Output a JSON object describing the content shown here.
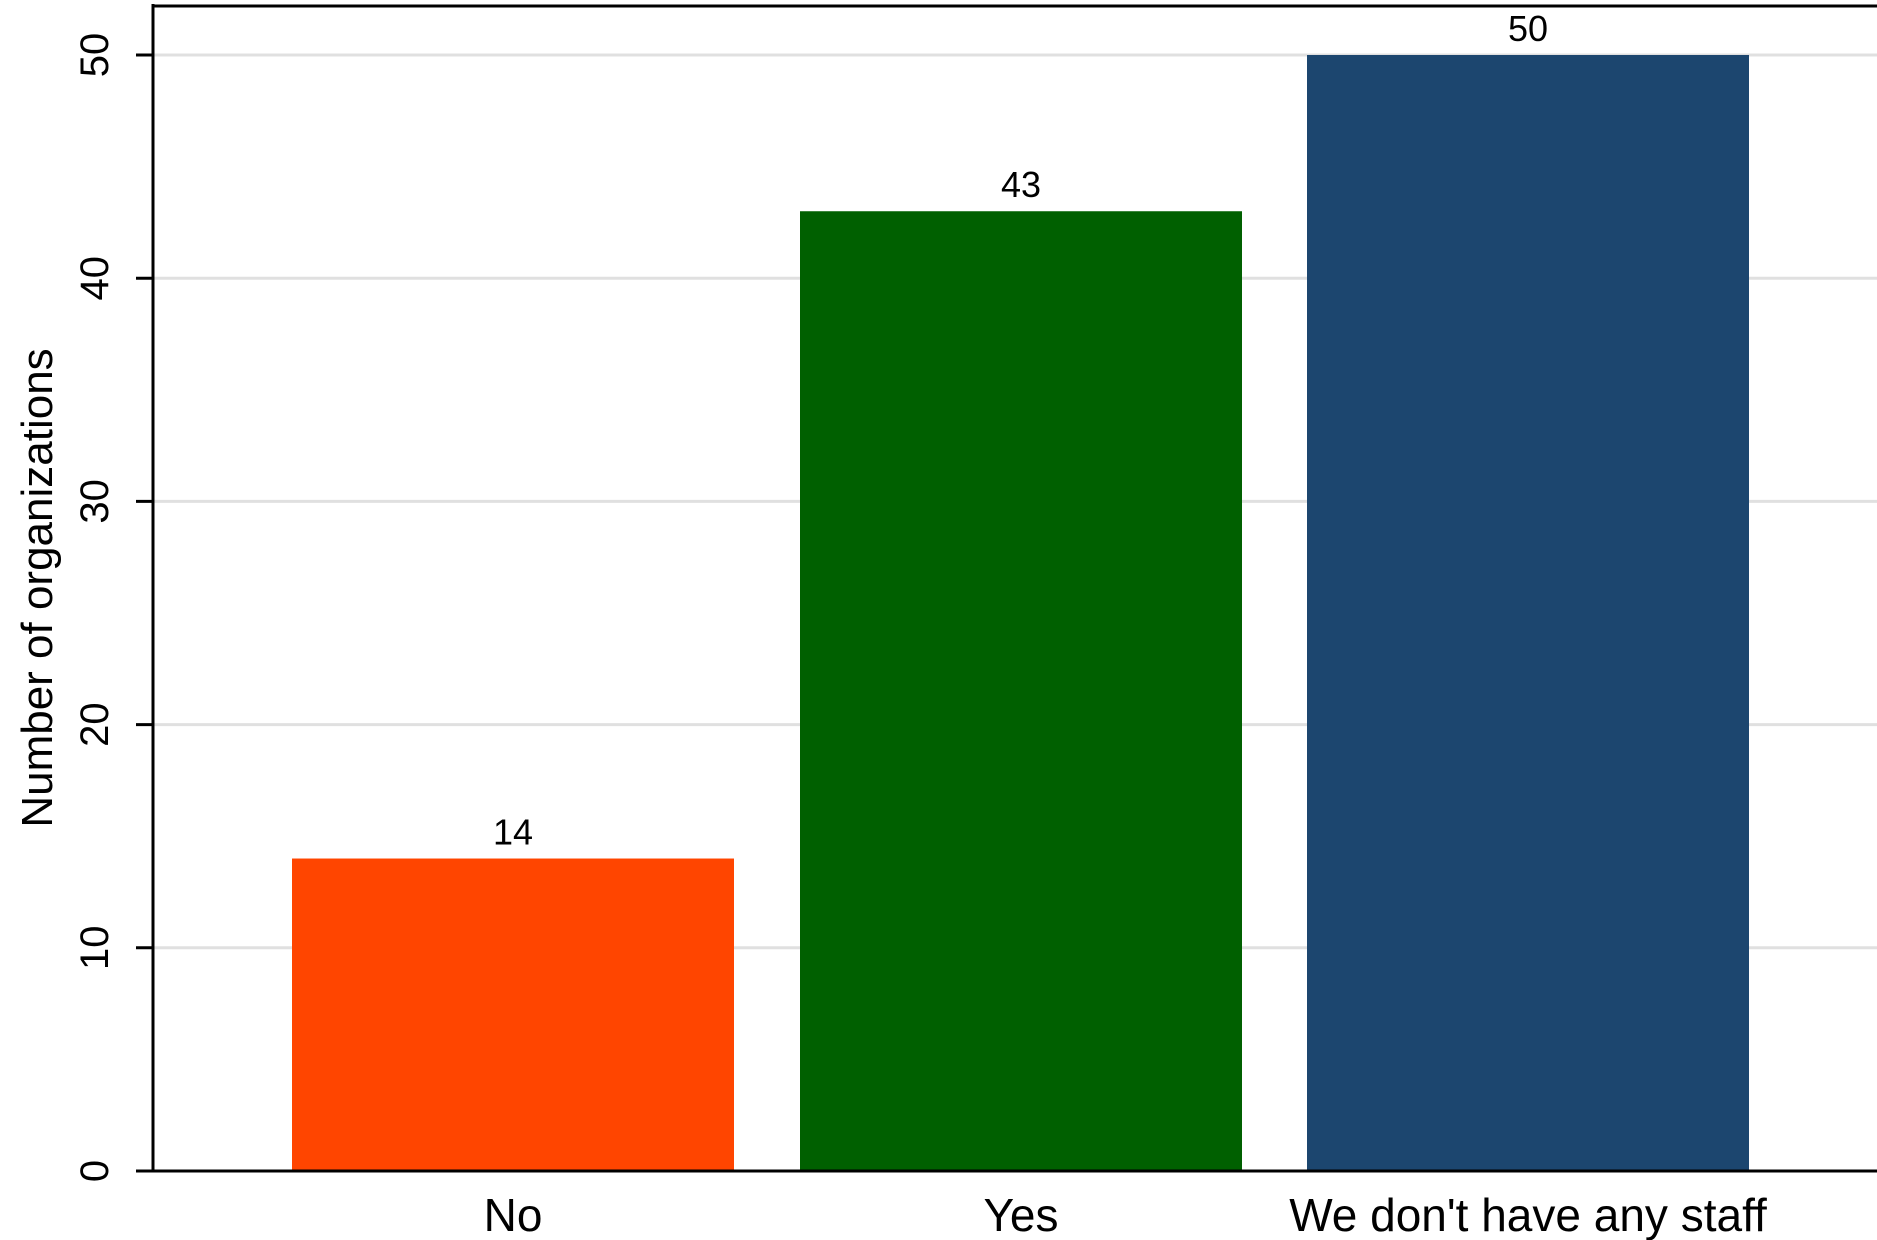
{
  "chart_data": {
    "type": "bar",
    "categories": [
      "No",
      "Yes",
      "We don't have any staff"
    ],
    "values": [
      14,
      43,
      50
    ],
    "data_labels": [
      "14",
      "43",
      "50"
    ],
    "colors": [
      "#ff4500",
      "#006000",
      "#1c466f"
    ],
    "title": "",
    "xlabel": "",
    "ylabel": "Number of organizations",
    "ylim": [
      0,
      50
    ],
    "yticks": [
      0,
      10,
      20,
      30,
      40,
      50
    ],
    "ytick_labels": [
      "0",
      "10",
      "20",
      "30",
      "40",
      "50"
    ],
    "grid": true,
    "grid_color": "#e0e0e0",
    "legend": "none"
  }
}
